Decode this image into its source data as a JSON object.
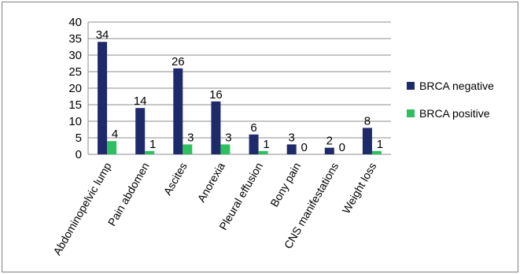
{
  "chart_data": {
    "type": "bar",
    "categories": [
      "Abdominopelvic lump",
      "Pain abdomen",
      "Ascites",
      "Anorexia",
      "Pleural effusion",
      "Bony pain",
      "CNS manifestations",
      "Weight loss"
    ],
    "series": [
      {
        "name": "BRCA negative",
        "values": [
          34,
          14,
          26,
          16,
          6,
          3,
          2,
          8
        ],
        "color": "#1f2a6b"
      },
      {
        "name": "BRCA positive",
        "values": [
          4,
          1,
          3,
          3,
          1,
          0,
          0,
          1
        ],
        "color": "#2fbf5f"
      }
    ],
    "data_labels": {
      "BRCA negative": [
        "34",
        "14",
        "26",
        "16",
        "6",
        "3",
        "2",
        "8"
      ],
      "BRCA positive": [
        "4",
        "1",
        "3",
        "3",
        "1",
        "0",
        "0",
        "1"
      ]
    },
    "y_ticks": [
      "0",
      "5",
      "10",
      "15",
      "20",
      "25",
      "30",
      "35",
      "40"
    ],
    "ylim": [
      0,
      40
    ],
    "grid": true,
    "legend_position": "right"
  }
}
